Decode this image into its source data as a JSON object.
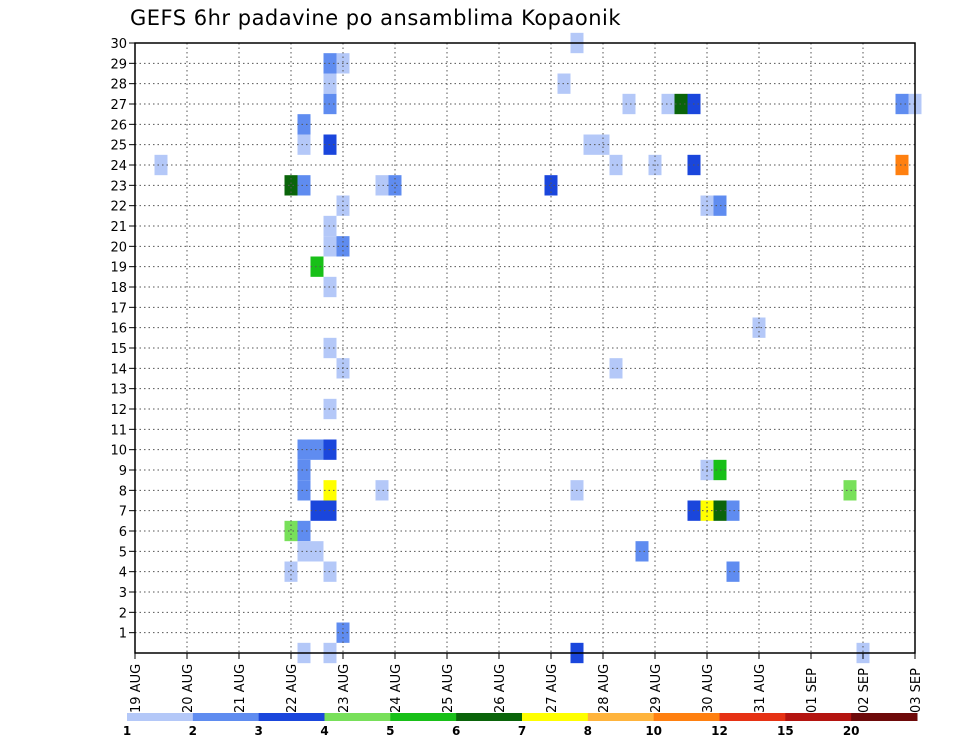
{
  "chart_data": {
    "type": "heatmap",
    "title": "GEFS 6hr padavine po ansamblima Kopaonik",
    "xlabel": "",
    "ylabel": "",
    "x_ticks": [
      "19 AUG",
      "20 AUG",
      "21 AUG",
      "22 AUG",
      "23 AUG",
      "24 AUG",
      "25 AUG",
      "26 AUG",
      "27 AUG",
      "28 AUG",
      "29 AUG",
      "30 AUG",
      "31 AUG",
      "01 SEP",
      "02 SEP",
      "03 SEP"
    ],
    "y_ticks": [
      1,
      2,
      3,
      4,
      5,
      6,
      7,
      8,
      9,
      10,
      11,
      12,
      13,
      14,
      15,
      16,
      17,
      18,
      19,
      20,
      21,
      22,
      23,
      24,
      25,
      26,
      27,
      28,
      29,
      30
    ],
    "xlim_days": [
      0,
      15
    ],
    "ylim": [
      0,
      30
    ],
    "step_hours": 6,
    "grid": true,
    "colorbar": {
      "labels": [
        "1",
        "2",
        "3",
        "4",
        "5",
        "6",
        "7",
        "8",
        "10",
        "12",
        "15",
        "20"
      ],
      "colors": [
        "#b4c8f8",
        "#5f8cf0",
        "#1a46dc",
        "#78e05a",
        "#18c018",
        "#0a640a",
        "#ffff00",
        "#ffb43c",
        "#ff8010",
        "#e63214",
        "#b41410",
        "#6e0a0a"
      ]
    },
    "cells_note": "each cell: [day offset from 19 AUG, member, color index into colorbar.colors]",
    "cells": [
      [
        0.5,
        24,
        0
      ],
      [
        3.0,
        23,
        5
      ],
      [
        3.0,
        6,
        3
      ],
      [
        3.0,
        4,
        0
      ],
      [
        3.25,
        26,
        1
      ],
      [
        3.25,
        25,
        0
      ],
      [
        3.25,
        23,
        1
      ],
      [
        3.25,
        10,
        1
      ],
      [
        3.25,
        9,
        1
      ],
      [
        3.25,
        8,
        1
      ],
      [
        3.25,
        6,
        1
      ],
      [
        3.25,
        5,
        0
      ],
      [
        3.25,
        0,
        0
      ],
      [
        3.5,
        19,
        4
      ],
      [
        3.5,
        10,
        1
      ],
      [
        3.5,
        7,
        2
      ],
      [
        3.5,
        5,
        0
      ],
      [
        3.75,
        29,
        1
      ],
      [
        3.75,
        28,
        0
      ],
      [
        3.75,
        27,
        1
      ],
      [
        3.75,
        25,
        2
      ],
      [
        3.75,
        21,
        0
      ],
      [
        3.75,
        20,
        0
      ],
      [
        3.75,
        18,
        0
      ],
      [
        3.75,
        15,
        0
      ],
      [
        3.75,
        12,
        0
      ],
      [
        3.75,
        10,
        2
      ],
      [
        3.75,
        8,
        6
      ],
      [
        3.75,
        7,
        2
      ],
      [
        3.75,
        4,
        0
      ],
      [
        3.75,
        0,
        0
      ],
      [
        4.0,
        29,
        0
      ],
      [
        4.0,
        22,
        0
      ],
      [
        4.0,
        20,
        1
      ],
      [
        4.0,
        14,
        0
      ],
      [
        4.0,
        1,
        1
      ],
      [
        4.75,
        23,
        0
      ],
      [
        4.75,
        8,
        0
      ],
      [
        5.0,
        23,
        1
      ],
      [
        8.0,
        23,
        2
      ],
      [
        8.25,
        28,
        0
      ],
      [
        8.5,
        30,
        0
      ],
      [
        8.5,
        8,
        0
      ],
      [
        8.5,
        0,
        2
      ],
      [
        8.75,
        25,
        0
      ],
      [
        9.0,
        25,
        0
      ],
      [
        9.25,
        24,
        0
      ],
      [
        9.25,
        14,
        0
      ],
      [
        9.5,
        27,
        0
      ],
      [
        9.75,
        5,
        1
      ],
      [
        10.0,
        24,
        0
      ],
      [
        10.25,
        27,
        0
      ],
      [
        10.5,
        27,
        5
      ],
      [
        10.75,
        27,
        2
      ],
      [
        10.75,
        24,
        2
      ],
      [
        10.75,
        7,
        2
      ],
      [
        11.0,
        22,
        0
      ],
      [
        11.0,
        9,
        0
      ],
      [
        11.0,
        7,
        6
      ],
      [
        11.25,
        22,
        1
      ],
      [
        11.25,
        9,
        4
      ],
      [
        11.25,
        7,
        5
      ],
      [
        11.5,
        7,
        1
      ],
      [
        11.5,
        4,
        1
      ],
      [
        12.0,
        16,
        0
      ],
      [
        13.75,
        8,
        3
      ],
      [
        14.0,
        0,
        0
      ],
      [
        14.75,
        27,
        1
      ],
      [
        14.75,
        24,
        8
      ],
      [
        15.0,
        27,
        0
      ]
    ]
  }
}
